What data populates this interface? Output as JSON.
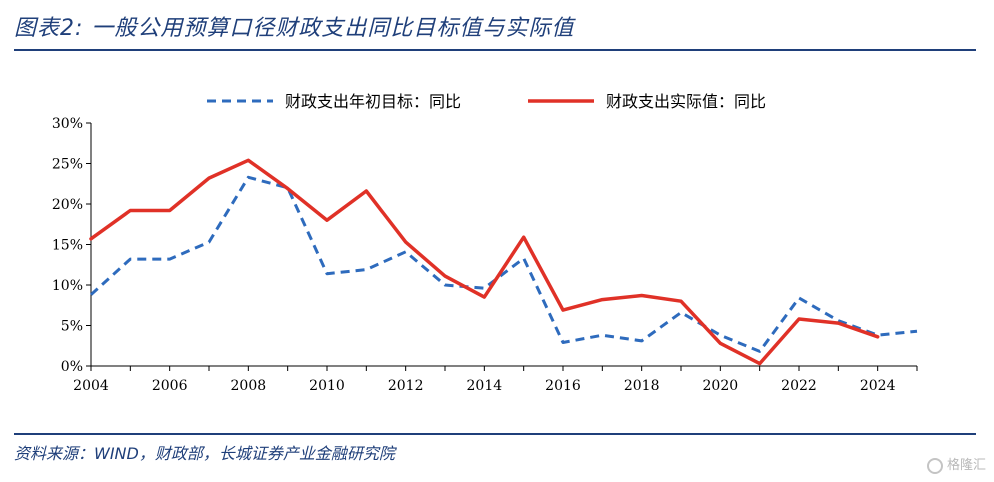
{
  "header": {
    "title": "图表2:  一般公用预算口径财政支出同比目标值与实际值"
  },
  "source_note": "资料来源：WIND，财政部，长城证券产业金融研究院",
  "watermark": {
    "text": "格隆汇"
  },
  "chart_data": {
    "type": "line",
    "title": "",
    "xlabel": "",
    "ylabel": "",
    "xlim": [
      2004,
      2025
    ],
    "ylim": [
      0,
      30
    ],
    "x_ticks": [
      "2004",
      "2006",
      "2008",
      "2010",
      "2012",
      "2014",
      "2016",
      "2018",
      "2020",
      "2022",
      "2024"
    ],
    "y_ticks": [
      "0%",
      "5%",
      "10%",
      "15%",
      "20%",
      "25%",
      "30%"
    ],
    "grid": false,
    "legend_position": "top-center",
    "series": [
      {
        "name": "财政支出年初目标：同比",
        "style": "dashed",
        "color": "#2e6bbd",
        "x": [
          2004,
          2005,
          2006,
          2007,
          2008,
          2009,
          2010,
          2011,
          2012,
          2013,
          2014,
          2015,
          2016,
          2017,
          2018,
          2019,
          2020,
          2021,
          2022,
          2023,
          2024,
          2025
        ],
        "values": [
          8.8,
          13.2,
          13.2,
          15.3,
          23.3,
          22.0,
          11.4,
          11.9,
          14.1,
          10.0,
          9.6,
          13.3,
          2.9,
          3.8,
          3.1,
          6.6,
          3.8,
          1.8,
          8.4,
          5.6,
          3.8,
          4.3
        ]
      },
      {
        "name": "财政支出实际值：同比",
        "style": "solid",
        "color": "#e03127",
        "x": [
          2004,
          2005,
          2006,
          2007,
          2008,
          2009,
          2010,
          2011,
          2012,
          2013,
          2014,
          2015,
          2016,
          2017,
          2018,
          2019,
          2020,
          2021,
          2022,
          2023,
          2024
        ],
        "values": [
          15.7,
          19.2,
          19.2,
          23.2,
          25.4,
          21.9,
          18.0,
          21.6,
          15.3,
          11.1,
          8.5,
          15.9,
          6.9,
          8.2,
          8.7,
          8.0,
          2.8,
          0.3,
          5.8,
          5.3,
          3.6
        ]
      }
    ]
  }
}
